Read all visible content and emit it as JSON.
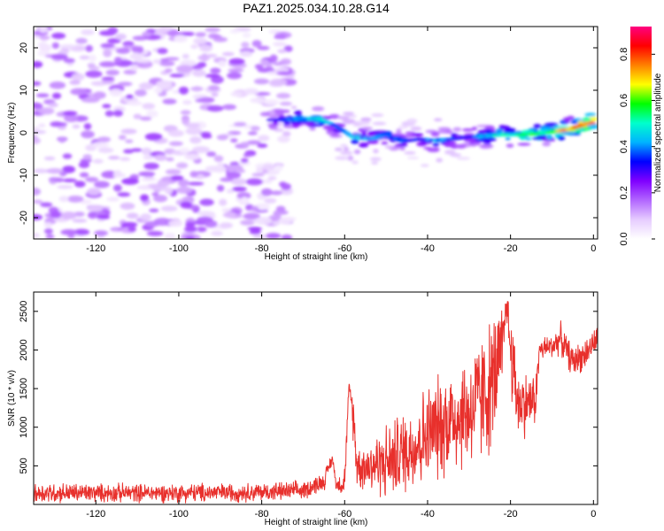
{
  "figure_title": "PAZ1.2025.034.10.28.G14",
  "chart_data": [
    {
      "type": "heatmap",
      "xlabel": "Height of straight line (km)",
      "ylabel": "Frequency (Hz)",
      "xlim": [
        -135,
        1
      ],
      "ylim": [
        -25,
        25
      ],
      "x_ticks": [
        -120,
        -100,
        -80,
        -60,
        -40,
        -20,
        0
      ],
      "y_ticks": [
        -20,
        -10,
        0,
        10,
        20
      ],
      "x_tick_labels": [
        "-120",
        "-100",
        "-80",
        "-60",
        "-40",
        "-20",
        "0"
      ],
      "y_tick_labels": [
        "-20",
        "-10",
        "0",
        "10",
        "20"
      ],
      "grid": false,
      "colorbar": {
        "label": "Normalized spectral amplitude",
        "range": [
          0.0,
          0.92
        ],
        "ticks": [
          0.0,
          0.2,
          0.4,
          0.6,
          0.8
        ],
        "tick_labels": [
          "0.0",
          "0.2",
          "0.4",
          "0.6",
          "0.8"
        ],
        "colormap": [
          "#ffffff",
          "#e6ccff",
          "#b266ff",
          "#8000ff",
          "#0000ff",
          "#00b3ff",
          "#00ffcc",
          "#00ff00",
          "#ffff00",
          "#ff8000",
          "#ff0000",
          "#ff0080"
        ]
      },
      "ridge": {
        "description_free": true,
        "x": [
          -78,
          -72,
          -66,
          -62,
          -58,
          -54,
          -50,
          -46,
          -42,
          -38,
          -34,
          -30,
          -26,
          -22,
          -18,
          -14,
          -10,
          -6,
          -2,
          0
        ],
        "frequency": [
          3,
          3.2,
          3.3,
          1.5,
          -1.0,
          -1.5,
          -0.5,
          -2.0,
          -1.5,
          -1.8,
          -1.5,
          -1.0,
          -0.8,
          -0.5,
          -0.5,
          -0.3,
          0.2,
          0.8,
          2.0,
          2.5
        ],
        "amplitude": [
          0.3,
          0.45,
          0.5,
          0.4,
          0.5,
          0.45,
          0.4,
          0.4,
          0.35,
          0.45,
          0.4,
          0.35,
          0.5,
          0.55,
          0.6,
          0.6,
          0.65,
          0.8,
          0.85,
          0.9
        ]
      },
      "noise_region_x": [
        -135,
        -73
      ],
      "noise_amplitude": 0.2
    },
    {
      "type": "line",
      "xlabel": "Height of straight line (km)",
      "ylabel": "SNR (10 * v/v)",
      "xlim": [
        -135,
        1
      ],
      "ylim": [
        0,
        2750
      ],
      "x_ticks": [
        -120,
        -100,
        -80,
        -60,
        -40,
        -20,
        0
      ],
      "y_ticks": [
        500,
        1000,
        1500,
        2000,
        2500
      ],
      "x_tick_labels": [
        "-120",
        "-100",
        "-80",
        "-60",
        "-40",
        "-20",
        "0"
      ],
      "y_tick_labels": [
        "500",
        "1000",
        "1500",
        "2000",
        "2500"
      ],
      "grid": false,
      "color": "#e8302c",
      "x": [
        -135,
        -120,
        -100,
        -80,
        -70,
        -65,
        -63,
        -62,
        -60,
        -59,
        -58,
        -57,
        -55,
        -50,
        -45,
        -40,
        -35,
        -30,
        -25,
        -22,
        -21,
        -20,
        -18,
        -14,
        -13,
        -10,
        -8,
        -5,
        -2,
        1
      ],
      "trend": [
        150,
        150,
        150,
        160,
        180,
        300,
        600,
        250,
        300,
        1500,
        1200,
        500,
        500,
        550,
        700,
        900,
        1100,
        1200,
        1500,
        1900,
        2650,
        2000,
        1300,
        1350,
        2000,
        2050,
        2150,
        1850,
        1950,
        2150
      ],
      "spread": [
        170,
        150,
        150,
        150,
        150,
        150,
        100,
        100,
        250,
        100,
        400,
        350,
        400,
        600,
        700,
        800,
        900,
        950,
        1100,
        900,
        150,
        800,
        600,
        400,
        200,
        200,
        250,
        250,
        250,
        200
      ]
    }
  ]
}
